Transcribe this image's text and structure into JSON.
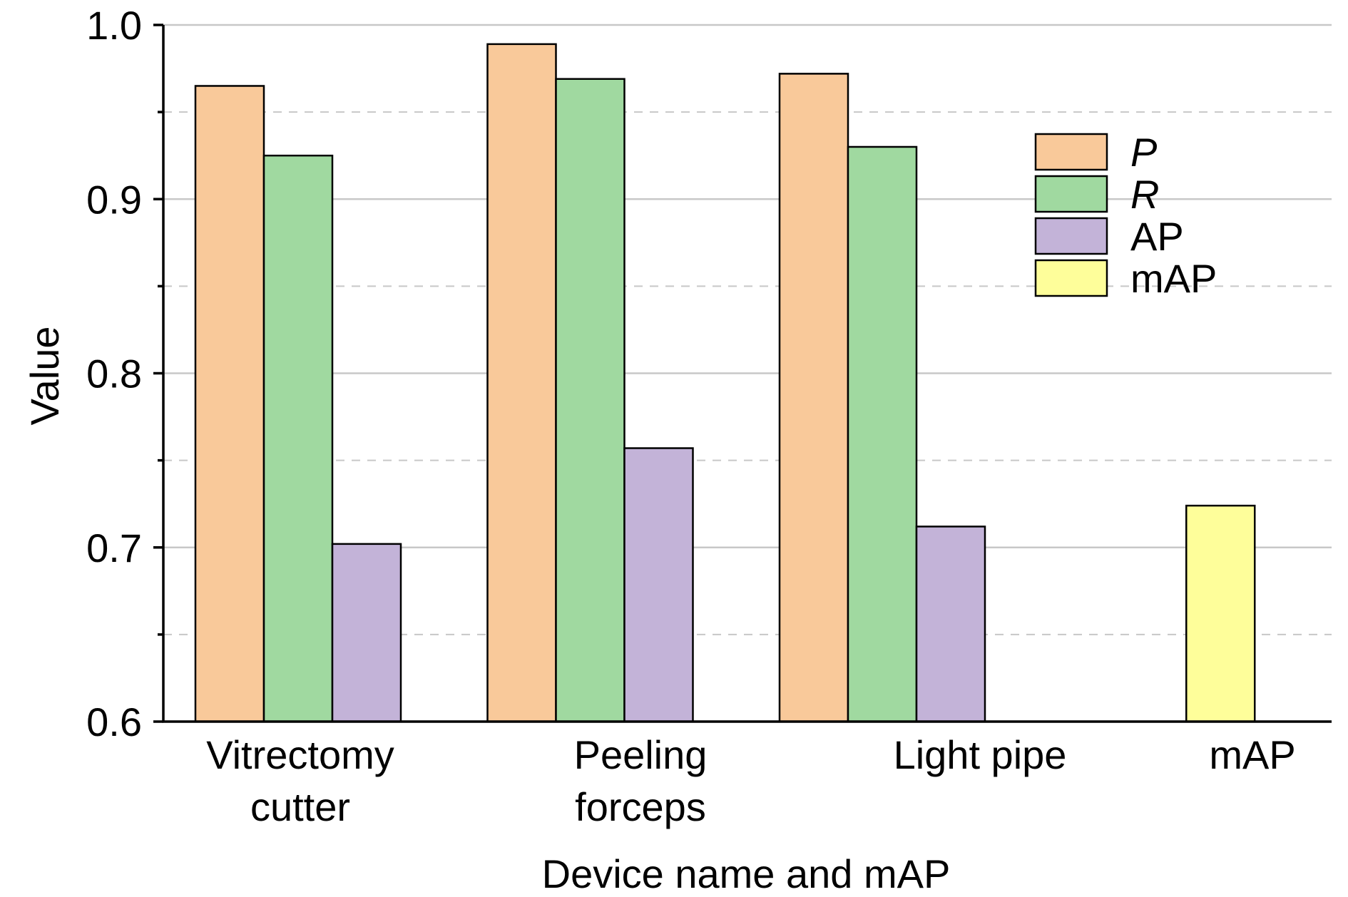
{
  "chart_data": {
    "type": "bar",
    "title": "",
    "xlabel": "Device name and mAP",
    "ylabel": "Value",
    "ylim": [
      0.6,
      1.0
    ],
    "yticks": [
      "0.6",
      "0.7",
      "0.8",
      "0.9",
      "1.0"
    ],
    "grid": true,
    "legend_position": "top-right",
    "categories": [
      [
        "Vitrectomy",
        "cutter"
      ],
      [
        "Peeling",
        "forceps"
      ],
      [
        "Light pipe"
      ],
      [
        "mAP"
      ]
    ],
    "series": [
      {
        "name": "P",
        "italic": true,
        "color": "#f9c99a",
        "values": [
          0.965,
          0.989,
          0.972,
          null
        ]
      },
      {
        "name": "R",
        "italic": true,
        "color": "#a0d9a0",
        "values": [
          0.925,
          0.969,
          0.93,
          null
        ]
      },
      {
        "name": "AP",
        "italic": false,
        "color": "#c3b3d8",
        "values": [
          0.702,
          0.757,
          0.712,
          null
        ]
      },
      {
        "name": "mAP",
        "italic": false,
        "color": "#fefe9a",
        "values": [
          null,
          null,
          null,
          0.724
        ]
      }
    ]
  }
}
